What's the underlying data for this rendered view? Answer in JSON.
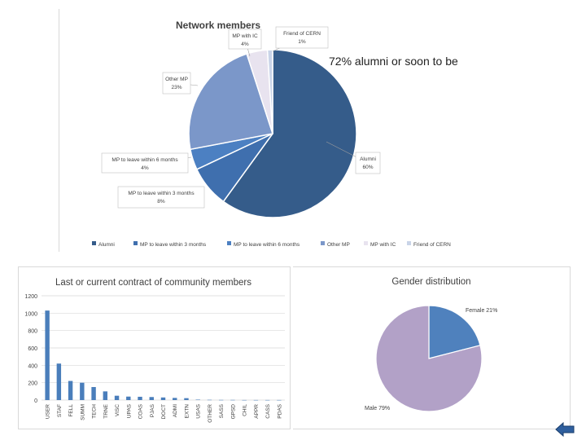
{
  "callout": "72% alumni or soon to be",
  "colors": {
    "alumni": "#355c8a",
    "mp3": "#3f6fae",
    "mp6": "#4c80c2",
    "otherMp": "#7b97c9",
    "mpIc": "#e8e3ef",
    "friend": "#c9d4e8",
    "bar": "#4a7ebb",
    "female": "#4f81bd",
    "male": "#b2a1c7",
    "accent": "#2f5f9e"
  },
  "chart_data": [
    {
      "type": "pie",
      "title": "Network members",
      "categories": [
        "Alumni",
        "MP to leave within 3 months",
        "MP to leave within 6 months",
        "Other MP",
        "MP with IC",
        "Friend of CERN"
      ],
      "values": [
        60,
        8,
        4,
        23,
        4,
        1
      ],
      "labels": [
        [
          "Alumni",
          "60%"
        ],
        [
          "MP to leave within 3 months",
          "8%"
        ],
        [
          "MP to leave within 6 months",
          "4%"
        ],
        [
          "Other MP",
          "23%"
        ],
        [
          "MP with IC",
          "4%"
        ],
        [
          "Friend of CERN",
          "1%"
        ]
      ],
      "legend": [
        "Alumni",
        "MP to leave within 3 months",
        "MP to leave within 6 months",
        "Other MP",
        "MP with IC",
        "Friend of CERN"
      ],
      "legend_position": "bottom"
    },
    {
      "type": "bar",
      "title": "Last or current contract of community members",
      "categories": [
        "USER",
        "STAF",
        "FELL",
        "SUMM",
        "TECH",
        "TRNE",
        "VISC",
        "UPAS",
        "COAS",
        "PJAS",
        "DOCT",
        "ADMI",
        "EXTN",
        "USAS",
        "OTHER",
        "SASS",
        "GPSD",
        "CHIL",
        "APPR",
        "CASS",
        "PDAS"
      ],
      "values": [
        1030,
        420,
        220,
        200,
        150,
        100,
        50,
        40,
        38,
        35,
        30,
        25,
        22,
        5,
        3,
        2,
        2,
        1,
        1,
        1,
        1
      ],
      "ylim": [
        0,
        1200
      ],
      "yticks": [
        "0",
        "200",
        "400",
        "600",
        "800",
        "1000",
        "1200"
      ],
      "grid": true
    },
    {
      "type": "pie",
      "title": "Gender distribution",
      "categories": [
        "Female",
        "Male"
      ],
      "values": [
        21,
        79
      ],
      "labels": [
        "Female 21%",
        "Male 79%"
      ]
    }
  ]
}
